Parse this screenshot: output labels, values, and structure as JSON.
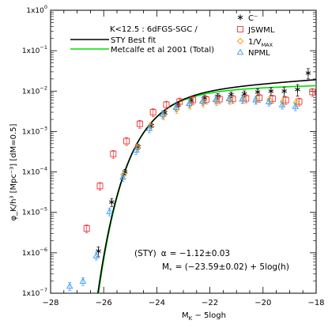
{
  "chart_data": {
    "type": "scatter",
    "title_line": "K<12.5 : 6dFGS-SGC /",
    "xlabel": "M_K − 5logh",
    "xlabel_main": "M",
    "xlabel_sub": "K",
    "xlabel_rest": " − 5logh",
    "ylabel": "φ_K/h³ [Mpc⁻³] [dM=0.5]",
    "xlim": [
      -28,
      -18
    ],
    "ylim_log10": [
      -7,
      0
    ],
    "x_scale": "linear",
    "y_scale": "log",
    "x_ticks": [
      -28,
      -26,
      -24,
      -22,
      -20,
      -18
    ],
    "x_tick_labels": [
      "−28",
      "−26",
      "−24",
      "−22",
      "−20",
      "−18"
    ],
    "y_ticks_log10": [
      0,
      -1,
      -2,
      -3,
      -4,
      -5,
      -6,
      -7
    ],
    "y_tick_labels": [
      "1x10",
      "1x10",
      "1x10",
      "1x10",
      "1x10",
      "1x10",
      "1x10",
      "1x10"
    ],
    "y_tick_exps": [
      "0",
      "−1",
      "−2",
      "−3",
      "−4",
      "−5",
      "−6",
      "−7"
    ],
    "legend_position": "top",
    "line_legend": [
      {
        "label": "STY Best fit",
        "color": "#000000"
      },
      {
        "label": "Metcalfe et al 2001 (Total)",
        "color": "#00dd00"
      }
    ],
    "marker_legend": [
      {
        "label": "C⁻",
        "marker": "asterisk",
        "color": "#000000"
      },
      {
        "label": "JSWML",
        "marker": "square",
        "color": "#ee3333"
      },
      {
        "label": "1/V",
        "sub": "MAX",
        "marker": "diamond",
        "color": "#ff9900"
      },
      {
        "label": "NPML",
        "marker": "triangle",
        "color": "#3399ff"
      }
    ],
    "annotation": {
      "line1_prefix": "(STY)",
      "line1_symbol": "α",
      "line1_value": "= −1.12±0.03",
      "line2_symbol": "M",
      "line2_sub": "*",
      "line2_value": "= (−23.59±0.02) + 5log(h)"
    },
    "sty_fit": {
      "alpha": -1.12,
      "Mstar": -23.59,
      "phistar": 0.0113,
      "color": "#000000"
    },
    "metcalfe_fit": {
      "alpha": -1.05,
      "Mstar": -23.55,
      "phistar": 0.0115,
      "color": "#00dd00"
    },
    "series": [
      {
        "name": "C⁻",
        "marker": "asterisk",
        "color": "#000000",
        "points": [
          [
            -26.2,
            1.1e-06,
            3e-07
          ],
          [
            -25.7,
            1.8e-05,
            4e-06
          ],
          [
            -25.2,
            0.0001,
            1.5e-05
          ],
          [
            -24.7,
            0.00042,
            6e-05
          ],
          [
            -24.2,
            0.0014,
            0.00015
          ],
          [
            -23.7,
            0.0029,
            0.0003
          ],
          [
            -23.2,
            0.0045,
            0.0005
          ],
          [
            -22.7,
            0.0058,
            0.0007
          ],
          [
            -22.2,
            0.0068,
            0.0009
          ],
          [
            -21.7,
            0.0075,
            0.0011
          ],
          [
            -21.2,
            0.0082,
            0.0013
          ],
          [
            -20.7,
            0.0086,
            0.0015
          ],
          [
            -20.2,
            0.0095,
            0.0018
          ],
          [
            -19.7,
            0.01,
            0.0022
          ],
          [
            -19.2,
            0.01,
            0.0026
          ],
          [
            -18.7,
            0.011,
            0.0035
          ],
          [
            -18.3,
            0.028,
            0.008
          ]
        ]
      },
      {
        "name": "JSWML",
        "marker": "square",
        "color": "#ee3333",
        "points": [
          [
            -26.7,
            4e-06
          ],
          [
            -26.2,
            4.5e-05
          ],
          [
            -25.7,
            0.00028
          ],
          [
            -25.2,
            0.00058
          ],
          [
            -24.7,
            0.00155
          ],
          [
            -24.2,
            0.003
          ],
          [
            -23.7,
            0.0046
          ],
          [
            -23.2,
            0.0055
          ],
          [
            -22.7,
            0.006
          ],
          [
            -22.2,
            0.0062
          ],
          [
            -21.7,
            0.0063
          ],
          [
            -21.2,
            0.0064
          ],
          [
            -20.7,
            0.0066
          ],
          [
            -20.2,
            0.0068
          ],
          [
            -19.7,
            0.0065
          ],
          [
            -19.2,
            0.006
          ],
          [
            -18.7,
            0.0055
          ],
          [
            -18.2,
            0.0095
          ]
        ]
      },
      {
        "name": "1/V_MAX",
        "marker": "diamond",
        "color": "#ff9900",
        "points": [
          [
            -25.2,
            8.5e-05
          ],
          [
            -24.7,
            0.0004
          ],
          [
            -24.2,
            0.00135
          ],
          [
            -23.7,
            0.0025
          ],
          [
            -23.2,
            0.0036
          ],
          [
            -22.7,
            0.0046
          ],
          [
            -22.2,
            0.0052
          ],
          [
            -21.7,
            0.0056
          ],
          [
            -21.2,
            0.006
          ],
          [
            -20.7,
            0.0063
          ],
          [
            -20.2,
            0.0062
          ],
          [
            -19.7,
            0.006
          ],
          [
            -19.2,
            0.0055
          ],
          [
            -18.7,
            0.0052
          ]
        ]
      },
      {
        "name": "NPML",
        "marker": "triangle",
        "color": "#3399ff",
        "points": [
          [
            -27.2,
            1.5e-07
          ],
          [
            -26.7,
            2e-07
          ],
          [
            -26.2,
            8.5e-07
          ],
          [
            -25.7,
            1.05e-05
          ],
          [
            -25.2,
            7.5e-05
          ],
          [
            -24.7,
            0.00035
          ],
          [
            -24.2,
            0.0012
          ],
          [
            -23.7,
            0.0027
          ],
          [
            -23.2,
            0.004
          ],
          [
            -22.7,
            0.005
          ],
          [
            -22.2,
            0.0057
          ],
          [
            -21.7,
            0.0062
          ],
          [
            -21.2,
            0.0065
          ],
          [
            -20.7,
            0.0064
          ],
          [
            -20.2,
            0.0061
          ],
          [
            -19.7,
            0.0055
          ],
          [
            -19.2,
            0.0046
          ],
          [
            -18.7,
            0.0042
          ]
        ]
      }
    ]
  }
}
